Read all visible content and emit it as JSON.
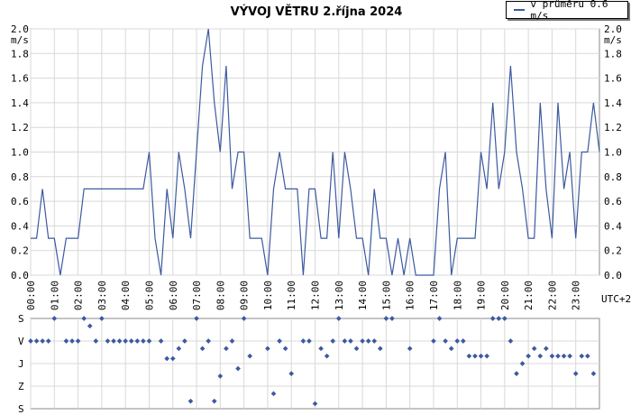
{
  "chart_data": [
    {
      "type": "line",
      "title": "VÝVOJ VĚTRU  2.října 2024",
      "ylabel": "m/s",
      "y_ticks": [
        "0.0",
        "0.2",
        "0.4",
        "0.6",
        "0.8",
        "1.0",
        "1.2",
        "1.4",
        "1.6",
        "1.8",
        "2.0"
      ],
      "ylim": [
        0,
        2.0
      ],
      "x_ticks": [
        "00:00",
        "01:00",
        "02:00",
        "03:00",
        "04:00",
        "05:00",
        "06:00",
        "07:00",
        "08:00",
        "09:00",
        "10:00",
        "11:00",
        "12:00",
        "13:00",
        "14:00",
        "15:00",
        "16:00",
        "17:00",
        "18:00",
        "19:00",
        "20:00",
        "21:00",
        "22:00",
        "23:00"
      ],
      "timezone_label": "UTC+2",
      "grid": true,
      "legend_position": "top-right",
      "color": "#3c5aa0",
      "series": [
        {
          "name": "v průměru 0.6 m/s",
          "x_unit": "hours",
          "x": [
            0,
            0.25,
            0.5,
            0.75,
            1.0,
            1.25,
            1.5,
            1.75,
            2.0,
            2.25,
            2.5,
            2.75,
            3.0,
            3.25,
            3.5,
            3.75,
            4.0,
            4.25,
            4.5,
            4.75,
            5.0,
            5.25,
            5.5,
            5.75,
            6.0,
            6.25,
            6.5,
            6.75,
            7.0,
            7.25,
            7.5,
            7.75,
            8.0,
            8.25,
            8.5,
            8.75,
            9.0,
            9.25,
            9.5,
            9.75,
            10.0,
            10.25,
            10.5,
            10.75,
            11.0,
            11.25,
            11.5,
            11.75,
            12.0,
            12.25,
            12.5,
            12.75,
            13.0,
            13.25,
            13.5,
            13.75,
            14.0,
            14.25,
            14.5,
            14.75,
            15.0,
            15.25,
            15.5,
            15.75,
            16.0,
            16.25,
            16.5,
            16.75,
            17.0,
            17.25,
            17.5,
            17.75,
            18.0,
            18.25,
            18.5,
            18.75,
            19.0,
            19.25,
            19.5,
            19.75,
            20.0,
            20.25,
            20.5,
            20.75,
            21.0,
            21.25,
            21.5,
            21.75,
            22.0,
            22.25,
            22.5,
            22.75,
            23.0,
            23.25,
            23.5,
            23.75,
            24.0
          ],
          "y": [
            0.3,
            0.3,
            0.7,
            0.3,
            0.3,
            0.0,
            0.3,
            0.3,
            0.3,
            0.7,
            0.7,
            0.7,
            0.7,
            0.7,
            0.7,
            0.7,
            0.7,
            0.7,
            0.7,
            0.7,
            1.0,
            0.3,
            0.0,
            0.7,
            0.3,
            1.0,
            0.7,
            0.3,
            1.0,
            1.7,
            2.0,
            1.4,
            1.0,
            1.7,
            0.7,
            1.0,
            1.0,
            0.3,
            0.3,
            0.3,
            0.0,
            0.7,
            1.0,
            0.7,
            0.7,
            0.7,
            0.0,
            0.7,
            0.7,
            0.3,
            0.3,
            1.0,
            0.3,
            1.0,
            0.7,
            0.3,
            0.3,
            0.0,
            0.7,
            0.3,
            0.3,
            0.0,
            0.3,
            0.0,
            0.3,
            0.0,
            0.0,
            0.0,
            0.0,
            0.7,
            1.0,
            0.0,
            0.3,
            0.3,
            0.3,
            0.3,
            1.0,
            0.7,
            1.4,
            0.7,
            1.0,
            1.7,
            1.0,
            0.7,
            0.3,
            0.3,
            1.4,
            0.7,
            0.3,
            1.4,
            0.7,
            1.0,
            0.3,
            1.0,
            1.0,
            1.4,
            1.0
          ]
        }
      ]
    },
    {
      "type": "scatter",
      "y_categories": [
        "S",
        "V",
        "J",
        "Z",
        "S"
      ],
      "y_category_values": [
        0,
        90,
        180,
        270,
        360
      ],
      "color": "#3c5aa0",
      "series": [
        {
          "name": "",
          "x_unit": "hours",
          "x": [
            0,
            0.25,
            0.5,
            0.75,
            1.0,
            1.5,
            1.75,
            2.0,
            2.25,
            2.5,
            2.75,
            3.0,
            3.25,
            3.5,
            3.75,
            4.0,
            4.25,
            4.5,
            4.75,
            5.0,
            5.5,
            5.75,
            6.0,
            6.25,
            6.5,
            6.75,
            7.0,
            7.25,
            7.5,
            7.75,
            8.0,
            8.25,
            8.5,
            8.75,
            9.0,
            9.25,
            10.0,
            10.25,
            10.5,
            10.75,
            11.0,
            11.5,
            11.75,
            12.0,
            12.25,
            12.5,
            12.75,
            13.0,
            13.25,
            13.5,
            13.75,
            14.0,
            14.25,
            14.5,
            14.75,
            15.0,
            15.25,
            16.0,
            17.0,
            17.25,
            17.5,
            17.75,
            18.0,
            18.25,
            18.5,
            18.75,
            19.0,
            19.25,
            19.5,
            19.75,
            20.0,
            20.25,
            20.5,
            20.75,
            21.0,
            21.25,
            21.5,
            21.75,
            22.0,
            22.25,
            22.5,
            22.75,
            23.0,
            23.25,
            23.5,
            23.75
          ],
          "y": [
            90,
            90,
            90,
            90,
            0,
            90,
            90,
            90,
            0,
            30,
            90,
            0,
            90,
            90,
            90,
            90,
            90,
            90,
            90,
            90,
            90,
            160,
            160,
            120,
            90,
            330,
            0,
            120,
            90,
            330,
            230,
            120,
            90,
            200,
            0,
            150,
            120,
            300,
            90,
            120,
            220,
            90,
            90,
            340,
            120,
            150,
            90,
            0,
            90,
            90,
            120,
            90,
            90,
            90,
            120,
            0,
            0,
            120,
            90,
            0,
            90,
            120,
            90,
            90,
            150,
            150,
            150,
            150,
            0,
            0,
            0,
            90,
            220,
            180,
            150,
            120,
            150,
            120,
            150,
            150,
            150,
            150,
            220,
            150,
            150,
            220
          ]
        }
      ]
    }
  ]
}
